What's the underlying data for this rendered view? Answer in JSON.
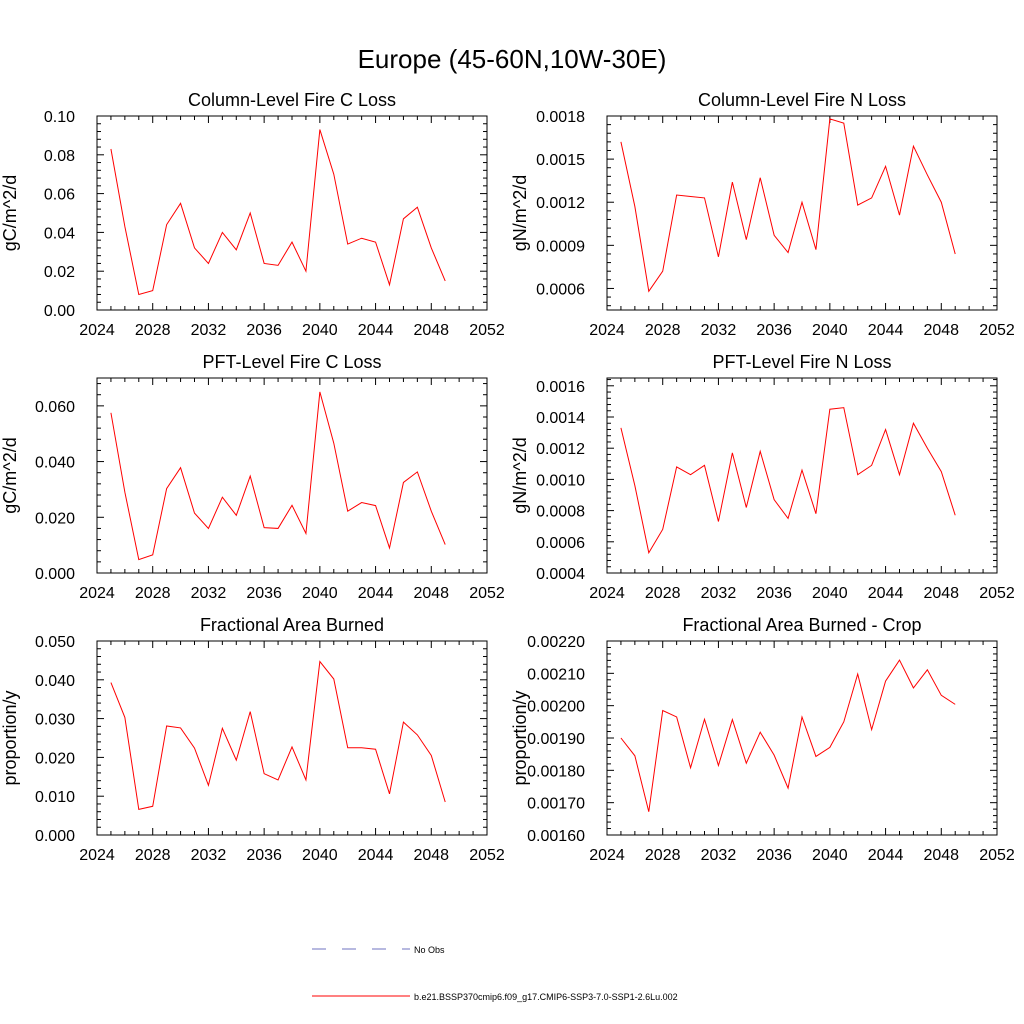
{
  "figure": {
    "title": "Europe (45-60N,10W-30E)"
  },
  "legend": {
    "entries": [
      {
        "label": "No Obs",
        "color": "#6f73c2",
        "dashed": true
      },
      {
        "label": "b.e21.BSSP370cmip6.f09_g17.CMIP6-SSP3-7.0-SSP1-2.6Lu.002",
        "color": "#ff0000",
        "dashed": false
      }
    ]
  },
  "chart_data": [
    {
      "type": "line",
      "title": "Column-Level Fire C Loss",
      "xlabel": "",
      "ylabel": "gC/m^2/d",
      "xlim": [
        2024,
        2052
      ],
      "ylim": [
        0.0,
        0.1
      ],
      "xticks": [
        2024,
        2028,
        2032,
        2036,
        2040,
        2044,
        2048,
        2052
      ],
      "yticks": [
        0.0,
        0.02,
        0.04,
        0.06,
        0.08,
        0.1
      ],
      "ytick_labels": [
        "0.00",
        "0.02",
        "0.04",
        "0.06",
        "0.08",
        "0.10"
      ],
      "x": [
        2025,
        2026,
        2027,
        2028,
        2029,
        2030,
        2031,
        2032,
        2033,
        2034,
        2035,
        2036,
        2037,
        2038,
        2039,
        2040,
        2041,
        2042,
        2043,
        2044,
        2045,
        2046,
        2047,
        2048,
        2049
      ],
      "series": [
        {
          "color": "#ff0000",
          "values": [
            0.083,
            0.043,
            0.008,
            0.01,
            0.044,
            0.055,
            0.032,
            0.024,
            0.04,
            0.031,
            0.05,
            0.024,
            0.023,
            0.035,
            0.02,
            0.093,
            0.07,
            0.034,
            0.037,
            0.035,
            0.013,
            0.047,
            0.053,
            0.032,
            0.015
          ]
        }
      ]
    },
    {
      "type": "line",
      "title": "Column-Level Fire N Loss",
      "xlabel": "",
      "ylabel": "gN/m^2/d",
      "xlim": [
        2024,
        2052
      ],
      "ylim": [
        0.00045,
        0.0018
      ],
      "xticks": [
        2024,
        2028,
        2032,
        2036,
        2040,
        2044,
        2048,
        2052
      ],
      "yticks": [
        0.0006,
        0.0009,
        0.0012,
        0.0015,
        0.0018
      ],
      "ytick_labels": [
        "0.0006",
        "0.0009",
        "0.0012",
        "0.0015",
        "0.0018"
      ],
      "x": [
        2025,
        2026,
        2027,
        2028,
        2029,
        2030,
        2031,
        2032,
        2033,
        2034,
        2035,
        2036,
        2037,
        2038,
        2039,
        2040,
        2041,
        2042,
        2043,
        2044,
        2045,
        2046,
        2047,
        2048,
        2049
      ],
      "series": [
        {
          "color": "#ff0000",
          "values": [
            0.00162,
            0.00117,
            0.00058,
            0.00072,
            0.00125,
            0.00124,
            0.00123,
            0.00082,
            0.00134,
            0.00094,
            0.00137,
            0.00097,
            0.00085,
            0.0012,
            0.00087,
            0.00178,
            0.00175,
            0.00118,
            0.00123,
            0.00145,
            0.00111,
            0.00159,
            0.00139,
            0.0012,
            0.00084
          ]
        }
      ]
    },
    {
      "type": "line",
      "title": "PFT-Level Fire C Loss",
      "xlabel": "",
      "ylabel": "gC/m^2/d",
      "xlim": [
        2024,
        2052
      ],
      "ylim": [
        0.0,
        0.07
      ],
      "xticks": [
        2024,
        2028,
        2032,
        2036,
        2040,
        2044,
        2048,
        2052
      ],
      "yticks": [
        0.0,
        0.02,
        0.04,
        0.06
      ],
      "ytick_labels": [
        "0.000",
        "0.020",
        "0.040",
        "0.060"
      ],
      "x": [
        2025,
        2026,
        2027,
        2028,
        2029,
        2030,
        2031,
        2032,
        2033,
        2034,
        2035,
        2036,
        2037,
        2038,
        2039,
        2040,
        2041,
        2042,
        2043,
        2044,
        2045,
        2046,
        2047,
        2048,
        2049
      ],
      "series": [
        {
          "color": "#ff0000",
          "values": [
            0.0575,
            0.029,
            0.0048,
            0.0065,
            0.0303,
            0.0378,
            0.0215,
            0.016,
            0.0272,
            0.0207,
            0.0348,
            0.0163,
            0.016,
            0.0243,
            0.0142,
            0.065,
            0.0466,
            0.0222,
            0.0253,
            0.0242,
            0.009,
            0.0325,
            0.0363,
            0.0222,
            0.0102
          ]
        }
      ]
    },
    {
      "type": "line",
      "title": "PFT-Level Fire N Loss",
      "xlabel": "",
      "ylabel": "gN/m^2/d",
      "xlim": [
        2024,
        2052
      ],
      "ylim": [
        0.0004,
        0.00165
      ],
      "xticks": [
        2024,
        2028,
        2032,
        2036,
        2040,
        2044,
        2048,
        2052
      ],
      "yticks": [
        0.0004,
        0.0006,
        0.0008,
        0.001,
        0.0012,
        0.0014,
        0.0016
      ],
      "ytick_labels": [
        "0.0004",
        "0.0006",
        "0.0008",
        "0.0010",
        "0.0012",
        "0.0014",
        "0.0016"
      ],
      "x": [
        2025,
        2026,
        2027,
        2028,
        2029,
        2030,
        2031,
        2032,
        2033,
        2034,
        2035,
        2036,
        2037,
        2038,
        2039,
        2040,
        2041,
        2042,
        2043,
        2044,
        2045,
        2046,
        2047,
        2048,
        2049
      ],
      "series": [
        {
          "color": "#ff0000",
          "values": [
            0.00133,
            0.00096,
            0.00053,
            0.00068,
            0.00108,
            0.00103,
            0.00109,
            0.00073,
            0.00117,
            0.00082,
            0.00118,
            0.00087,
            0.00075,
            0.00106,
            0.00078,
            0.00145,
            0.00146,
            0.00103,
            0.00109,
            0.00132,
            0.00103,
            0.00136,
            0.0012,
            0.00105,
            0.00077
          ]
        }
      ]
    },
    {
      "type": "line",
      "title": "Fractional Area Burned",
      "xlabel": "",
      "ylabel": "proportion/y",
      "xlim": [
        2024,
        2052
      ],
      "ylim": [
        0.0,
        0.05
      ],
      "xticks": [
        2024,
        2028,
        2032,
        2036,
        2040,
        2044,
        2048,
        2052
      ],
      "yticks": [
        0.0,
        0.01,
        0.02,
        0.03,
        0.04,
        0.05
      ],
      "ytick_labels": [
        "0.000",
        "0.010",
        "0.020",
        "0.030",
        "0.040",
        "0.050"
      ],
      "x": [
        2025,
        2026,
        2027,
        2028,
        2029,
        2030,
        2031,
        2032,
        2033,
        2034,
        2035,
        2036,
        2037,
        2038,
        2039,
        2040,
        2041,
        2042,
        2043,
        2044,
        2045,
        2046,
        2047,
        2048,
        2049
      ],
      "series": [
        {
          "color": "#ff0000",
          "values": [
            0.0393,
            0.0303,
            0.0066,
            0.0074,
            0.0281,
            0.0276,
            0.0224,
            0.0128,
            0.0275,
            0.0193,
            0.0318,
            0.0158,
            0.0142,
            0.0227,
            0.0142,
            0.0447,
            0.0402,
            0.0225,
            0.0225,
            0.0221,
            0.0106,
            0.0291,
            0.0258,
            0.0205,
            0.0085
          ]
        }
      ]
    },
    {
      "type": "line",
      "title": "Fractional Area Burned - Crop",
      "xlabel": "",
      "ylabel": "proportion/y",
      "xlim": [
        2024,
        2052
      ],
      "ylim": [
        0.0016,
        0.0022
      ],
      "xticks": [
        2024,
        2028,
        2032,
        2036,
        2040,
        2044,
        2048,
        2052
      ],
      "yticks": [
        0.0016,
        0.0017,
        0.0018,
        0.0019,
        0.002,
        0.0021,
        0.0022
      ],
      "ytick_labels": [
        "0.00160",
        "0.00170",
        "0.00180",
        "0.00190",
        "0.00200",
        "0.00210",
        "0.00220"
      ],
      "x": [
        2025,
        2026,
        2027,
        2028,
        2029,
        2030,
        2031,
        2032,
        2033,
        2034,
        2035,
        2036,
        2037,
        2038,
        2039,
        2040,
        2041,
        2042,
        2043,
        2044,
        2045,
        2046,
        2047,
        2048,
        2049
      ],
      "series": [
        {
          "color": "#ff0000",
          "values": [
            0.0019,
            0.001845,
            0.001672,
            0.001985,
            0.001965,
            0.001808,
            0.001958,
            0.001815,
            0.001957,
            0.001822,
            0.001918,
            0.001847,
            0.001745,
            0.001965,
            0.001843,
            0.001871,
            0.00195,
            0.002098,
            0.001926,
            0.002076,
            0.002141,
            0.002055,
            0.002111,
            0.002032,
            0.002004
          ]
        }
      ]
    }
  ]
}
